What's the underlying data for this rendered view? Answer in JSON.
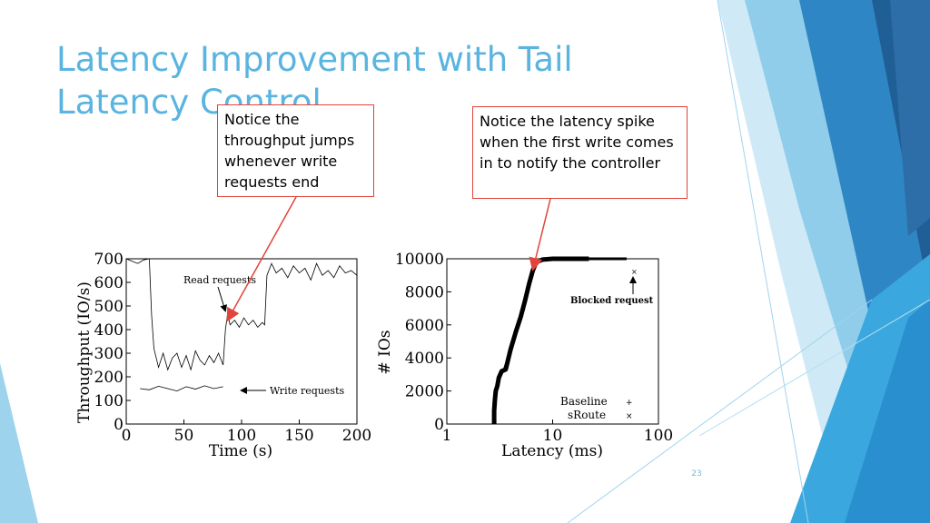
{
  "slide": {
    "title": "Latency Improvement with Tail Latency Control",
    "slide_number": "23",
    "accent_color": "#5ab4e0",
    "decoration": "blue geometric facets on right edge"
  },
  "callouts": [
    {
      "text": "Notice the throughput jumps whenever write requests end",
      "border_color": "#e0443a"
    },
    {
      "text": "Notice the latency spike when the first write comes in to notify the controller",
      "border_color": "#e0443a"
    }
  ],
  "chart_data": [
    {
      "type": "line",
      "xlabel": "Time (s)",
      "ylabel": "Throughput (IO/s)",
      "xlim": [
        0,
        200
      ],
      "ylim": [
        0,
        700
      ],
      "xticks": [
        0,
        50,
        100,
        150,
        200
      ],
      "yticks": [
        0,
        100,
        200,
        300,
        400,
        500,
        600,
        700
      ],
      "grid": false,
      "annotations": [
        "Read requests",
        "Write requests"
      ],
      "series": [
        {
          "name": "Read requests",
          "x": [
            0,
            5,
            10,
            15,
            20,
            22,
            24,
            28,
            32,
            36,
            40,
            44,
            48,
            52,
            56,
            60,
            64,
            68,
            72,
            76,
            80,
            84,
            86,
            88,
            90,
            94,
            98,
            102,
            106,
            110,
            114,
            118,
            120,
            122,
            126,
            130,
            135,
            140,
            145,
            150,
            155,
            160,
            165,
            170,
            175,
            180,
            185,
            190,
            195,
            200
          ],
          "y": [
            700,
            690,
            680,
            695,
            700,
            460,
            320,
            240,
            300,
            230,
            280,
            300,
            240,
            290,
            230,
            310,
            270,
            250,
            290,
            260,
            300,
            250,
            400,
            470,
            420,
            440,
            410,
            450,
            420,
            440,
            410,
            430,
            420,
            630,
            680,
            640,
            660,
            620,
            670,
            640,
            660,
            610,
            680,
            630,
            650,
            620,
            670,
            640,
            650,
            630
          ]
        },
        {
          "name": "Write requests",
          "x": [
            12,
            20,
            28,
            36,
            44,
            52,
            60,
            68,
            76,
            84
          ],
          "y": [
            150,
            145,
            160,
            150,
            140,
            158,
            148,
            162,
            150,
            158
          ]
        }
      ]
    },
    {
      "type": "line",
      "xlabel": "Latency (ms)",
      "ylabel": "# IOs",
      "x_scale": "log",
      "xlim": [
        1,
        100
      ],
      "ylim": [
        0,
        10000
      ],
      "xticks": [
        1,
        10,
        100
      ],
      "yticks": [
        0,
        2000,
        4000,
        6000,
        8000,
        10000
      ],
      "grid": false,
      "legend_position": "bottom-right",
      "annotations": [
        "Blocked request"
      ],
      "series": [
        {
          "name": "Baseline",
          "x": [
            2.8,
            2.8,
            2.85,
            2.9,
            3.0,
            3.1,
            3.3,
            3.6,
            4.0,
            4.5,
            5.0,
            5.5,
            6.0,
            6.5,
            7.0,
            8.0,
            10,
            15,
            20,
            22
          ],
          "y": [
            0,
            800,
            1500,
            2000,
            2300,
            2800,
            3200,
            3300,
            4500,
            5600,
            6500,
            7500,
            8500,
            9300,
            9800,
            9950,
            10000,
            10000,
            10000,
            10000
          ]
        },
        {
          "name": "sRoute",
          "x": [
            2.8,
            2.85,
            2.9,
            3.0,
            3.2,
            3.5,
            3.8,
            4.2,
            4.7,
            5.2,
            5.7,
            6.2,
            6.8,
            7.5,
            9,
            12,
            18,
            50
          ],
          "y": [
            0,
            1200,
            1800,
            2500,
            3000,
            3300,
            4000,
            5000,
            6000,
            7000,
            8000,
            9000,
            9600,
            9900,
            10000,
            10000,
            10000,
            10000
          ]
        }
      ]
    }
  ]
}
